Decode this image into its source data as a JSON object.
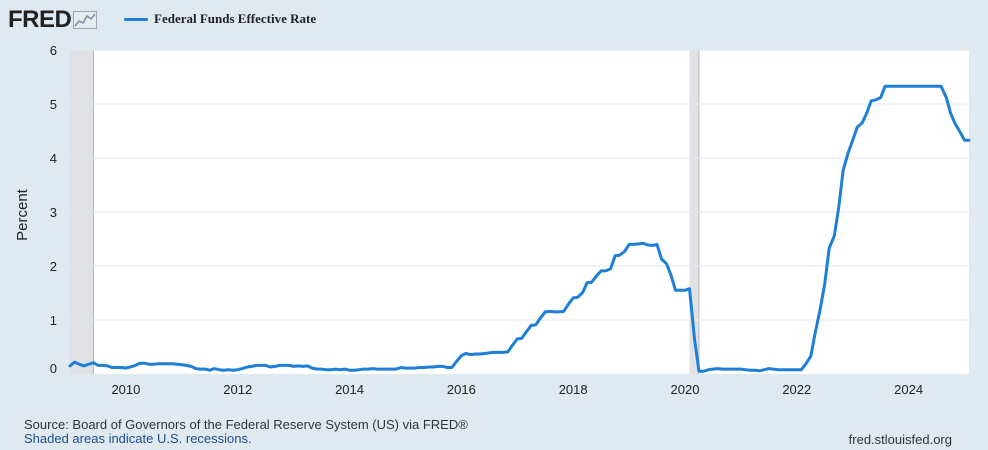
{
  "header": {
    "logo_text": "FRED",
    "legend_label": "Federal Funds Effective Rate"
  },
  "footer": {
    "source": "Source: Board of Governors of the Federal Reserve System (US) via FRED®",
    "recession_note": "Shaded areas indicate U.S. recessions.",
    "site": "fred.stlouisfed.org"
  },
  "colors": {
    "series": "#1e7fd6",
    "recession": "#dfe1e4",
    "background": "#e1e9f0",
    "plot": "#ffffff"
  },
  "chart_data": {
    "type": "line",
    "title": "",
    "xlabel": "",
    "ylabel": "Percent",
    "xlim": [
      2009.0,
      2025.08
    ],
    "ylim": [
      0,
      6
    ],
    "x_ticks": [
      2010,
      2012,
      2014,
      2016,
      2018,
      2020,
      2022,
      2024
    ],
    "x_tick_labels": [
      "2010",
      "2012",
      "2014",
      "2016",
      "2018",
      "2020",
      "2022",
      "2024"
    ],
    "y_ticks": [
      0,
      1,
      2,
      3,
      4,
      5,
      6
    ],
    "y_tick_labels": [
      "0",
      "1",
      "2",
      "3",
      "4",
      "5",
      "6"
    ],
    "grid": "horizontal",
    "legend": "top-left",
    "recessions": [
      {
        "start": 2009.0,
        "end": 2009.42
      },
      {
        "start": 2020.08,
        "end": 2020.25
      }
    ],
    "series": [
      {
        "name": "Federal Funds Effective Rate",
        "points": [
          [
            2009.0,
            0.15
          ],
          [
            2009.08,
            0.22
          ],
          [
            2009.17,
            0.18
          ],
          [
            2009.25,
            0.15
          ],
          [
            2009.33,
            0.18
          ],
          [
            2009.42,
            0.21
          ],
          [
            2009.5,
            0.16
          ],
          [
            2009.58,
            0.16
          ],
          [
            2009.67,
            0.15
          ],
          [
            2009.75,
            0.12
          ],
          [
            2009.83,
            0.12
          ],
          [
            2009.92,
            0.12
          ],
          [
            2010.0,
            0.11
          ],
          [
            2010.08,
            0.13
          ],
          [
            2010.17,
            0.16
          ],
          [
            2010.25,
            0.2
          ],
          [
            2010.33,
            0.2
          ],
          [
            2010.42,
            0.18
          ],
          [
            2010.5,
            0.18
          ],
          [
            2010.58,
            0.19
          ],
          [
            2010.67,
            0.19
          ],
          [
            2010.75,
            0.19
          ],
          [
            2010.83,
            0.19
          ],
          [
            2010.92,
            0.18
          ],
          [
            2011.0,
            0.17
          ],
          [
            2011.08,
            0.16
          ],
          [
            2011.17,
            0.14
          ],
          [
            2011.25,
            0.1
          ],
          [
            2011.33,
            0.09
          ],
          [
            2011.42,
            0.09
          ],
          [
            2011.5,
            0.07
          ],
          [
            2011.58,
            0.1
          ],
          [
            2011.67,
            0.08
          ],
          [
            2011.75,
            0.07
          ],
          [
            2011.83,
            0.08
          ],
          [
            2011.92,
            0.07
          ],
          [
            2012.0,
            0.08
          ],
          [
            2012.08,
            0.1
          ],
          [
            2012.17,
            0.13
          ],
          [
            2012.25,
            0.14
          ],
          [
            2012.33,
            0.16
          ],
          [
            2012.42,
            0.16
          ],
          [
            2012.5,
            0.16
          ],
          [
            2012.58,
            0.13
          ],
          [
            2012.67,
            0.14
          ],
          [
            2012.75,
            0.16
          ],
          [
            2012.83,
            0.16
          ],
          [
            2012.92,
            0.16
          ],
          [
            2013.0,
            0.14
          ],
          [
            2013.08,
            0.15
          ],
          [
            2013.17,
            0.14
          ],
          [
            2013.25,
            0.15
          ],
          [
            2013.33,
            0.11
          ],
          [
            2013.42,
            0.09
          ],
          [
            2013.5,
            0.09
          ],
          [
            2013.58,
            0.08
          ],
          [
            2013.67,
            0.08
          ],
          [
            2013.75,
            0.09
          ],
          [
            2013.83,
            0.08
          ],
          [
            2013.92,
            0.09
          ],
          [
            2014.0,
            0.07
          ],
          [
            2014.08,
            0.07
          ],
          [
            2014.17,
            0.08
          ],
          [
            2014.25,
            0.09
          ],
          [
            2014.33,
            0.09
          ],
          [
            2014.42,
            0.1
          ],
          [
            2014.5,
            0.09
          ],
          [
            2014.58,
            0.09
          ],
          [
            2014.67,
            0.09
          ],
          [
            2014.75,
            0.09
          ],
          [
            2014.83,
            0.09
          ],
          [
            2014.92,
            0.12
          ],
          [
            2015.0,
            0.11
          ],
          [
            2015.08,
            0.11
          ],
          [
            2015.17,
            0.11
          ],
          [
            2015.25,
            0.12
          ],
          [
            2015.33,
            0.12
          ],
          [
            2015.42,
            0.13
          ],
          [
            2015.5,
            0.13
          ],
          [
            2015.58,
            0.14
          ],
          [
            2015.67,
            0.14
          ],
          [
            2015.75,
            0.12
          ],
          [
            2015.83,
            0.12
          ],
          [
            2015.92,
            0.24
          ],
          [
            2016.0,
            0.34
          ],
          [
            2016.08,
            0.38
          ],
          [
            2016.17,
            0.36
          ],
          [
            2016.25,
            0.37
          ],
          [
            2016.33,
            0.37
          ],
          [
            2016.42,
            0.38
          ],
          [
            2016.5,
            0.39
          ],
          [
            2016.58,
            0.4
          ],
          [
            2016.67,
            0.4
          ],
          [
            2016.75,
            0.4
          ],
          [
            2016.83,
            0.41
          ],
          [
            2016.92,
            0.54
          ],
          [
            2017.0,
            0.65
          ],
          [
            2017.08,
            0.66
          ],
          [
            2017.17,
            0.79
          ],
          [
            2017.25,
            0.9
          ],
          [
            2017.33,
            0.91
          ],
          [
            2017.42,
            1.04
          ],
          [
            2017.5,
            1.15
          ],
          [
            2017.58,
            1.16
          ],
          [
            2017.67,
            1.15
          ],
          [
            2017.75,
            1.15
          ],
          [
            2017.83,
            1.16
          ],
          [
            2017.92,
            1.3
          ],
          [
            2018.0,
            1.41
          ],
          [
            2018.08,
            1.42
          ],
          [
            2018.17,
            1.51
          ],
          [
            2018.25,
            1.69
          ],
          [
            2018.33,
            1.7
          ],
          [
            2018.42,
            1.82
          ],
          [
            2018.5,
            1.91
          ],
          [
            2018.58,
            1.91
          ],
          [
            2018.67,
            1.95
          ],
          [
            2018.75,
            2.19
          ],
          [
            2018.83,
            2.2
          ],
          [
            2018.92,
            2.27
          ],
          [
            2019.0,
            2.4
          ],
          [
            2019.08,
            2.4
          ],
          [
            2019.17,
            2.41
          ],
          [
            2019.25,
            2.42
          ],
          [
            2019.33,
            2.39
          ],
          [
            2019.42,
            2.38
          ],
          [
            2019.5,
            2.4
          ],
          [
            2019.58,
            2.13
          ],
          [
            2019.67,
            2.04
          ],
          [
            2019.75,
            1.83
          ],
          [
            2019.83,
            1.55
          ],
          [
            2019.92,
            1.55
          ],
          [
            2020.0,
            1.55
          ],
          [
            2020.08,
            1.58
          ],
          [
            2020.17,
            0.65
          ],
          [
            2020.25,
            0.05
          ],
          [
            2020.33,
            0.05
          ],
          [
            2020.42,
            0.08
          ],
          [
            2020.5,
            0.09
          ],
          [
            2020.58,
            0.1
          ],
          [
            2020.67,
            0.09
          ],
          [
            2020.75,
            0.09
          ],
          [
            2020.83,
            0.09
          ],
          [
            2020.92,
            0.09
          ],
          [
            2021.0,
            0.09
          ],
          [
            2021.08,
            0.08
          ],
          [
            2021.17,
            0.07
          ],
          [
            2021.25,
            0.07
          ],
          [
            2021.33,
            0.06
          ],
          [
            2021.42,
            0.08
          ],
          [
            2021.5,
            0.1
          ],
          [
            2021.58,
            0.09
          ],
          [
            2021.67,
            0.08
          ],
          [
            2021.75,
            0.08
          ],
          [
            2021.83,
            0.08
          ],
          [
            2021.92,
            0.08
          ],
          [
            2022.0,
            0.08
          ],
          [
            2022.08,
            0.08
          ],
          [
            2022.17,
            0.2
          ],
          [
            2022.25,
            0.33
          ],
          [
            2022.33,
            0.77
          ],
          [
            2022.42,
            1.21
          ],
          [
            2022.5,
            1.68
          ],
          [
            2022.58,
            2.33
          ],
          [
            2022.67,
            2.56
          ],
          [
            2022.75,
            3.08
          ],
          [
            2022.83,
            3.78
          ],
          [
            2022.92,
            4.1
          ],
          [
            2023.0,
            4.33
          ],
          [
            2023.08,
            4.57
          ],
          [
            2023.17,
            4.65
          ],
          [
            2023.25,
            4.83
          ],
          [
            2023.33,
            5.06
          ],
          [
            2023.42,
            5.08
          ],
          [
            2023.5,
            5.12
          ],
          [
            2023.58,
            5.33
          ],
          [
            2023.67,
            5.33
          ],
          [
            2023.75,
            5.33
          ],
          [
            2023.83,
            5.33
          ],
          [
            2023.92,
            5.33
          ],
          [
            2024.0,
            5.33
          ],
          [
            2024.08,
            5.33
          ],
          [
            2024.17,
            5.33
          ],
          [
            2024.25,
            5.33
          ],
          [
            2024.33,
            5.33
          ],
          [
            2024.42,
            5.33
          ],
          [
            2024.5,
            5.33
          ],
          [
            2024.58,
            5.33
          ],
          [
            2024.67,
            5.13
          ],
          [
            2024.75,
            4.83
          ],
          [
            2024.83,
            4.64
          ],
          [
            2024.92,
            4.48
          ],
          [
            2025.0,
            4.33
          ],
          [
            2025.08,
            4.33
          ]
        ]
      }
    ]
  }
}
